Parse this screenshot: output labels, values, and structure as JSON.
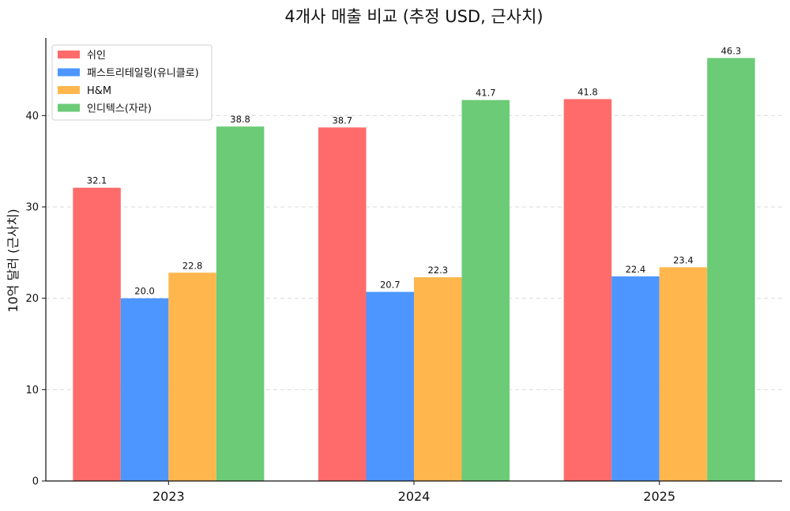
{
  "chart_data": {
    "type": "bar",
    "title": "4개사 매출 비교 (추정 USD, 근사치)",
    "xlabel": "",
    "ylabel": "10억 달러 (근사치)",
    "categories": [
      "2023",
      "2024",
      "2025"
    ],
    "ylim": [
      0,
      48.5
    ],
    "yticks": [
      0,
      10,
      20,
      30,
      40
    ],
    "grid": "y-dashed",
    "legend_position": "top-left",
    "series": [
      {
        "name": "쉬인",
        "color": "#FF6B6B",
        "values": [
          32.1,
          38.7,
          41.8
        ]
      },
      {
        "name": "패스트리테일링(유니클로)",
        "color": "#4D96FF",
        "values": [
          20.0,
          20.7,
          22.4
        ]
      },
      {
        "name": "H&M",
        "color": "#FFB74D",
        "values": [
          22.8,
          22.3,
          23.4
        ]
      },
      {
        "name": "인디텍스(자라)",
        "color": "#6BCB77",
        "values": [
          38.8,
          41.7,
          46.3
        ]
      }
    ]
  }
}
